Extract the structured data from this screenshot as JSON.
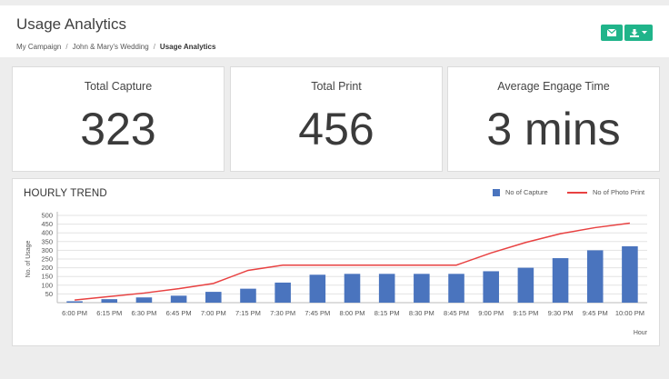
{
  "header": {
    "title": "Usage Analytics",
    "breadcrumb": [
      "My Campaign",
      "John & Mary's Wedding",
      "Usage Analytics"
    ],
    "buttons": [
      {
        "icon": "envelope-icon"
      },
      {
        "icon": "download-icon",
        "dropdown": true
      }
    ],
    "accent_color": "#20b48a"
  },
  "stats": [
    {
      "label": "Total Capture",
      "value": "323"
    },
    {
      "label": "Total Print",
      "value": "456"
    },
    {
      "label": "Average Engage Time",
      "value": "3 mins"
    }
  ],
  "trend": {
    "title": "HOURLY TREND"
  },
  "chart_data": {
    "type": "bar",
    "title": "HOURLY TREND",
    "xlabel": "Hour",
    "ylabel": "No. of Usage",
    "ylim": [
      0,
      500
    ],
    "yticks": [
      50,
      100,
      150,
      200,
      250,
      300,
      350,
      400,
      450,
      500
    ],
    "grid": true,
    "legend_position": "top-right",
    "categories": [
      "6:00 PM",
      "6:15 PM",
      "6:30 PM",
      "6:45 PM",
      "7:00 PM",
      "7:15 PM",
      "7:30 PM",
      "7:45 PM",
      "8:00 PM",
      "8:15 PM",
      "8:30 PM",
      "8:45 PM",
      "9:00 PM",
      "9:15 PM",
      "9:30 PM",
      "9:45 PM",
      "10:00 PM"
    ],
    "series": [
      {
        "name": "No of Capture",
        "type": "bar",
        "color": "#4a74be",
        "values": [
          8,
          20,
          30,
          40,
          62,
          80,
          115,
          160,
          165,
          165,
          165,
          165,
          180,
          200,
          255,
          300,
          323
        ]
      },
      {
        "name": "No of Photo Print",
        "type": "line",
        "color": "#e84141",
        "values": [
          15,
          35,
          55,
          80,
          110,
          185,
          215,
          215,
          215,
          215,
          215,
          215,
          285,
          345,
          395,
          430,
          456
        ]
      }
    ]
  }
}
